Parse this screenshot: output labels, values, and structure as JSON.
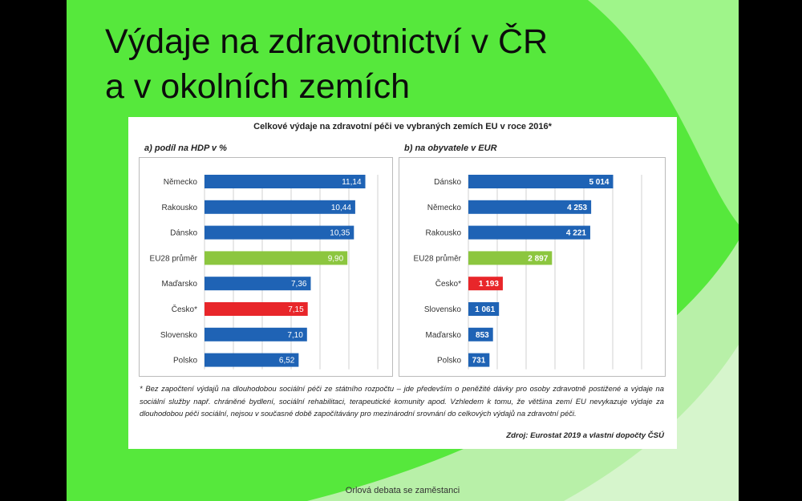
{
  "slide": {
    "title_line1": "Výdaje na zdravotnictví v ČR",
    "title_line2": "a v okolních zemích",
    "footer": "Orlová debata se zaměstanci",
    "colors": {
      "background": "#56e83c",
      "accent_light": "#b8f0a8"
    }
  },
  "figure": {
    "title": "Celkové výdaje na zdravotní péči ve vybraných zemích EU v roce 2016*",
    "footnote": "* Bez započtení výdajů na dlouhodobou sociální péči ze státního rozpočtu – jde především o peněžité dávky pro osoby zdravotně postižené a výdaje na sociální služby např. chráněné bydlení, sociální rehabilitaci, terapeutické komunity apod. Vzhledem k tomu, že většina zemí EU nevykazuje výdaje za dlouhodobou péči sociální, nejsou v současné době započítávány pro mezinárodní srovnání do celkových výdajů na zdravotní péči.",
    "source": "Zdroj: Eurostat 2019 a vlastní dopočty ČSÚ"
  },
  "chart_data": [
    {
      "type": "bar",
      "orientation": "horizontal",
      "title": "a) podíl na HDP v %",
      "categories": [
        "Německo",
        "Rakousko",
        "Dánsko",
        "EU28 průměr",
        "Maďarsko",
        "Česko*",
        "Slovensko",
        "Polsko"
      ],
      "values": [
        11.14,
        10.44,
        10.35,
        9.9,
        7.36,
        7.15,
        7.1,
        6.52
      ],
      "value_labels": [
        "11,14",
        "10,44",
        "10,35",
        "9,90",
        "7,36",
        "7,15",
        "7,10",
        "6,52"
      ],
      "colors": [
        "#1f63b5",
        "#1f63b5",
        "#1f63b5",
        "#8cc63f",
        "#1f63b5",
        "#e8262a",
        "#1f63b5",
        "#1f63b5"
      ],
      "xlim": [
        0,
        12
      ],
      "grid": true
    },
    {
      "type": "bar",
      "orientation": "horizontal",
      "title": "b) na obyvatele v EUR",
      "categories": [
        "Dánsko",
        "Německo",
        "Rakousko",
        "EU28 průměr",
        "Česko*",
        "Slovensko",
        "Maďarsko",
        "Polsko"
      ],
      "values": [
        5014,
        4253,
        4221,
        2897,
        1193,
        1061,
        853,
        731
      ],
      "value_labels": [
        "5 014",
        "4 253",
        "4 221",
        "2 897",
        "1 193",
        "1 061",
        "853",
        "731"
      ],
      "colors": [
        "#1f63b5",
        "#1f63b5",
        "#1f63b5",
        "#8cc63f",
        "#e8262a",
        "#1f63b5",
        "#1f63b5",
        "#1f63b5"
      ],
      "xlim": [
        0,
        6000
      ],
      "grid": true
    }
  ]
}
